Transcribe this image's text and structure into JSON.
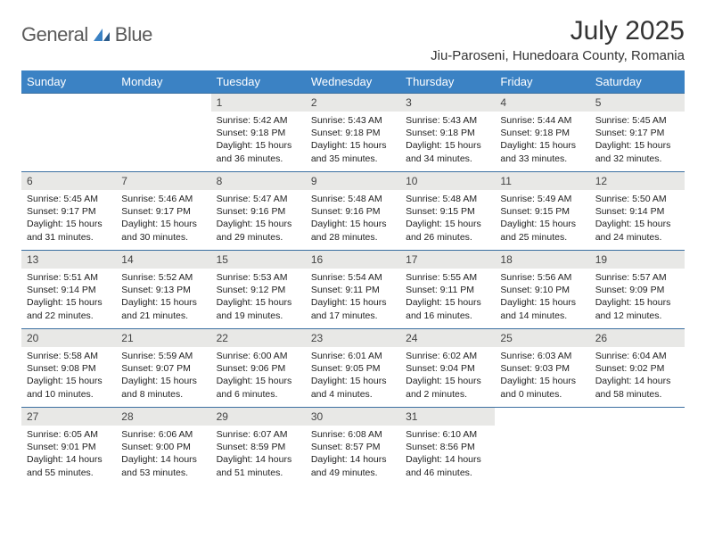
{
  "brand": {
    "word1": "General",
    "word2": "Blue"
  },
  "title": "July 2025",
  "location": "Jiu-Paroseni, Hunedoara County, Romania",
  "colors": {
    "header_bg": "#3b82c4",
    "header_text": "#ffffff",
    "row_divider": "#3b6fa0",
    "daynum_bg": "#e8e8e6",
    "daynum_text": "#444444",
    "body_text": "#222222",
    "logo_gray": "#5a5a5a",
    "logo_blue": "#3b82c4"
  },
  "day_headers": [
    "Sunday",
    "Monday",
    "Tuesday",
    "Wednesday",
    "Thursday",
    "Friday",
    "Saturday"
  ],
  "weeks": [
    [
      null,
      null,
      {
        "n": "1",
        "sr": "Sunrise: 5:42 AM",
        "ss": "Sunset: 9:18 PM",
        "dl": "Daylight: 15 hours and 36 minutes."
      },
      {
        "n": "2",
        "sr": "Sunrise: 5:43 AM",
        "ss": "Sunset: 9:18 PM",
        "dl": "Daylight: 15 hours and 35 minutes."
      },
      {
        "n": "3",
        "sr": "Sunrise: 5:43 AM",
        "ss": "Sunset: 9:18 PM",
        "dl": "Daylight: 15 hours and 34 minutes."
      },
      {
        "n": "4",
        "sr": "Sunrise: 5:44 AM",
        "ss": "Sunset: 9:18 PM",
        "dl": "Daylight: 15 hours and 33 minutes."
      },
      {
        "n": "5",
        "sr": "Sunrise: 5:45 AM",
        "ss": "Sunset: 9:17 PM",
        "dl": "Daylight: 15 hours and 32 minutes."
      }
    ],
    [
      {
        "n": "6",
        "sr": "Sunrise: 5:45 AM",
        "ss": "Sunset: 9:17 PM",
        "dl": "Daylight: 15 hours and 31 minutes."
      },
      {
        "n": "7",
        "sr": "Sunrise: 5:46 AM",
        "ss": "Sunset: 9:17 PM",
        "dl": "Daylight: 15 hours and 30 minutes."
      },
      {
        "n": "8",
        "sr": "Sunrise: 5:47 AM",
        "ss": "Sunset: 9:16 PM",
        "dl": "Daylight: 15 hours and 29 minutes."
      },
      {
        "n": "9",
        "sr": "Sunrise: 5:48 AM",
        "ss": "Sunset: 9:16 PM",
        "dl": "Daylight: 15 hours and 28 minutes."
      },
      {
        "n": "10",
        "sr": "Sunrise: 5:48 AM",
        "ss": "Sunset: 9:15 PM",
        "dl": "Daylight: 15 hours and 26 minutes."
      },
      {
        "n": "11",
        "sr": "Sunrise: 5:49 AM",
        "ss": "Sunset: 9:15 PM",
        "dl": "Daylight: 15 hours and 25 minutes."
      },
      {
        "n": "12",
        "sr": "Sunrise: 5:50 AM",
        "ss": "Sunset: 9:14 PM",
        "dl": "Daylight: 15 hours and 24 minutes."
      }
    ],
    [
      {
        "n": "13",
        "sr": "Sunrise: 5:51 AM",
        "ss": "Sunset: 9:14 PM",
        "dl": "Daylight: 15 hours and 22 minutes."
      },
      {
        "n": "14",
        "sr": "Sunrise: 5:52 AM",
        "ss": "Sunset: 9:13 PM",
        "dl": "Daylight: 15 hours and 21 minutes."
      },
      {
        "n": "15",
        "sr": "Sunrise: 5:53 AM",
        "ss": "Sunset: 9:12 PM",
        "dl": "Daylight: 15 hours and 19 minutes."
      },
      {
        "n": "16",
        "sr": "Sunrise: 5:54 AM",
        "ss": "Sunset: 9:11 PM",
        "dl": "Daylight: 15 hours and 17 minutes."
      },
      {
        "n": "17",
        "sr": "Sunrise: 5:55 AM",
        "ss": "Sunset: 9:11 PM",
        "dl": "Daylight: 15 hours and 16 minutes."
      },
      {
        "n": "18",
        "sr": "Sunrise: 5:56 AM",
        "ss": "Sunset: 9:10 PM",
        "dl": "Daylight: 15 hours and 14 minutes."
      },
      {
        "n": "19",
        "sr": "Sunrise: 5:57 AM",
        "ss": "Sunset: 9:09 PM",
        "dl": "Daylight: 15 hours and 12 minutes."
      }
    ],
    [
      {
        "n": "20",
        "sr": "Sunrise: 5:58 AM",
        "ss": "Sunset: 9:08 PM",
        "dl": "Daylight: 15 hours and 10 minutes."
      },
      {
        "n": "21",
        "sr": "Sunrise: 5:59 AM",
        "ss": "Sunset: 9:07 PM",
        "dl": "Daylight: 15 hours and 8 minutes."
      },
      {
        "n": "22",
        "sr": "Sunrise: 6:00 AM",
        "ss": "Sunset: 9:06 PM",
        "dl": "Daylight: 15 hours and 6 minutes."
      },
      {
        "n": "23",
        "sr": "Sunrise: 6:01 AM",
        "ss": "Sunset: 9:05 PM",
        "dl": "Daylight: 15 hours and 4 minutes."
      },
      {
        "n": "24",
        "sr": "Sunrise: 6:02 AM",
        "ss": "Sunset: 9:04 PM",
        "dl": "Daylight: 15 hours and 2 minutes."
      },
      {
        "n": "25",
        "sr": "Sunrise: 6:03 AM",
        "ss": "Sunset: 9:03 PM",
        "dl": "Daylight: 15 hours and 0 minutes."
      },
      {
        "n": "26",
        "sr": "Sunrise: 6:04 AM",
        "ss": "Sunset: 9:02 PM",
        "dl": "Daylight: 14 hours and 58 minutes."
      }
    ],
    [
      {
        "n": "27",
        "sr": "Sunrise: 6:05 AM",
        "ss": "Sunset: 9:01 PM",
        "dl": "Daylight: 14 hours and 55 minutes."
      },
      {
        "n": "28",
        "sr": "Sunrise: 6:06 AM",
        "ss": "Sunset: 9:00 PM",
        "dl": "Daylight: 14 hours and 53 minutes."
      },
      {
        "n": "29",
        "sr": "Sunrise: 6:07 AM",
        "ss": "Sunset: 8:59 PM",
        "dl": "Daylight: 14 hours and 51 minutes."
      },
      {
        "n": "30",
        "sr": "Sunrise: 6:08 AM",
        "ss": "Sunset: 8:57 PM",
        "dl": "Daylight: 14 hours and 49 minutes."
      },
      {
        "n": "31",
        "sr": "Sunrise: 6:10 AM",
        "ss": "Sunset: 8:56 PM",
        "dl": "Daylight: 14 hours and 46 minutes."
      },
      null,
      null
    ]
  ]
}
